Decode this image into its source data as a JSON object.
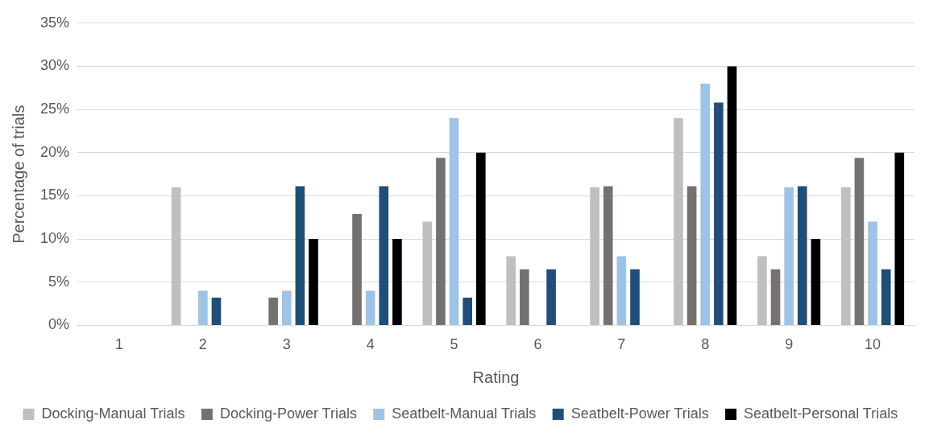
{
  "chart_data": {
    "type": "bar",
    "xlabel": "Rating",
    "ylabel": "Percentage of trials",
    "categories": [
      "1",
      "2",
      "3",
      "4",
      "5",
      "6",
      "7",
      "8",
      "9",
      "10"
    ],
    "series": [
      {
        "name": "Docking-Manual Trials",
        "color": "#bfbfbf",
        "values": [
          0,
          16,
          0,
          0,
          12,
          8,
          16,
          24,
          8,
          16
        ]
      },
      {
        "name": "Docking-Power Trials",
        "color": "#767171",
        "values": [
          0,
          0,
          3.2,
          12.9,
          19.4,
          6.5,
          16.1,
          16.1,
          6.5,
          19.4
        ]
      },
      {
        "name": "Seatbelt-Manual Trials",
        "color": "#9dc3e6",
        "values": [
          0,
          4,
          4,
          4,
          24,
          0,
          8,
          28,
          16,
          12
        ]
      },
      {
        "name": "Seatbelt-Power Trials",
        "color": "#1f4e79",
        "values": [
          0,
          3.2,
          16.1,
          16.1,
          3.2,
          6.5,
          6.5,
          25.8,
          16.1,
          6.5
        ]
      },
      {
        "name": "Seatbelt-Personal Trials",
        "color": "#000000",
        "values": [
          0,
          0,
          10,
          10,
          20,
          0,
          0,
          30,
          10,
          20
        ]
      }
    ],
    "ylim": [
      0,
      35
    ],
    "yticks": [
      {
        "value": 0,
        "label": "0%"
      },
      {
        "value": 5,
        "label": "5%"
      },
      {
        "value": 10,
        "label": "10%"
      },
      {
        "value": 15,
        "label": "15%"
      },
      {
        "value": 20,
        "label": "20%"
      },
      {
        "value": 25,
        "label": "25%"
      },
      {
        "value": 30,
        "label": "30%"
      },
      {
        "value": 35,
        "label": "35%"
      }
    ],
    "grid": "y",
    "legend": "bottom"
  }
}
